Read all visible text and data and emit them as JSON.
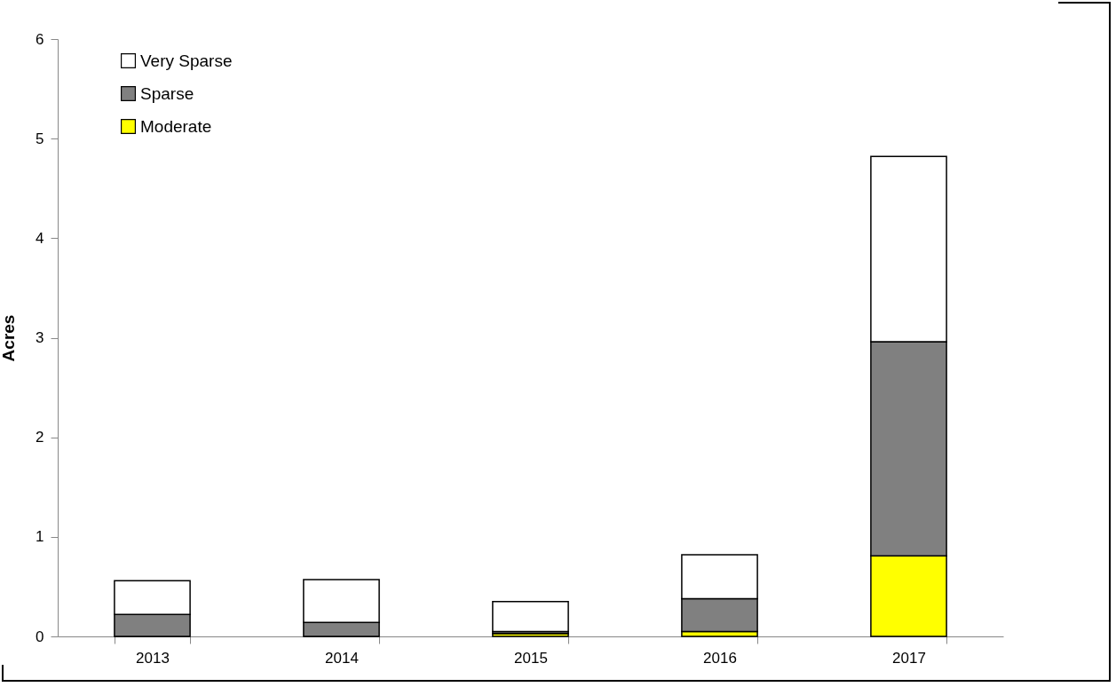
{
  "chart_data": {
    "type": "bar",
    "stacked": true,
    "ylabel": "Acres",
    "categories": [
      "2013",
      "2014",
      "2015",
      "2016",
      "2017"
    ],
    "series": [
      {
        "name": "Moderate",
        "color": "#ffff00",
        "values": [
          0,
          0,
          0.03,
          0.05,
          0.81
        ]
      },
      {
        "name": "Sparse",
        "color": "#808080",
        "values": [
          0.22,
          0.14,
          0.02,
          0.33,
          2.15
        ]
      },
      {
        "name": "Very Sparse",
        "color": "#ffffff",
        "values": [
          0.34,
          0.43,
          0.3,
          0.44,
          1.86
        ]
      }
    ],
    "ylim": [
      0,
      6
    ],
    "yticks": [
      0,
      1,
      2,
      3,
      4,
      5,
      6
    ],
    "grid": false,
    "legend": "top left"
  }
}
